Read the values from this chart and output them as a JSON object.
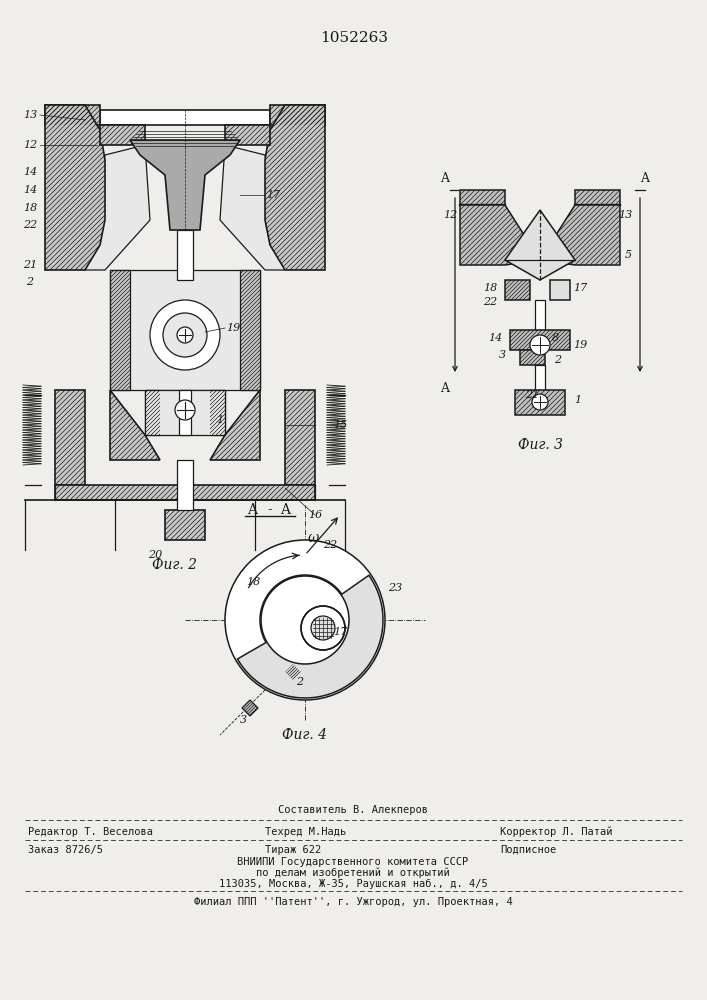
{
  "patent_number": "1052263",
  "bg": "#f0eeea",
  "lc": "#1a1a1a",
  "tc": "#1a1a1a",
  "hatch_color": "#555555",
  "fig2_caption": "Фиг. 2",
  "fig3_caption": "Фиг. 3",
  "fig4_caption": "Фиг. 4",
  "footer_line1_top": "Составитель В. Алекперов",
  "footer_line1_l": "Редактор Т. Веселова",
  "footer_line1_c": "Техред М.Надь",
  "footer_line1_r": "Корректор Л. Патай",
  "footer_line2_l": "Заказ 8726/5",
  "footer_line2_c": "Тираж 622",
  "footer_line2_r": "Подписное",
  "footer_line3": "ВНИИПИ Государственного комитета СССР",
  "footer_line4": "по делам изобретений и открытий",
  "footer_line5": "113035, Москва, Ж-35, Раушская наб., д. 4/5",
  "footer_line6": "Филиал ППП ''Патент'', г. Ужгород, ул. Проектная, 4"
}
